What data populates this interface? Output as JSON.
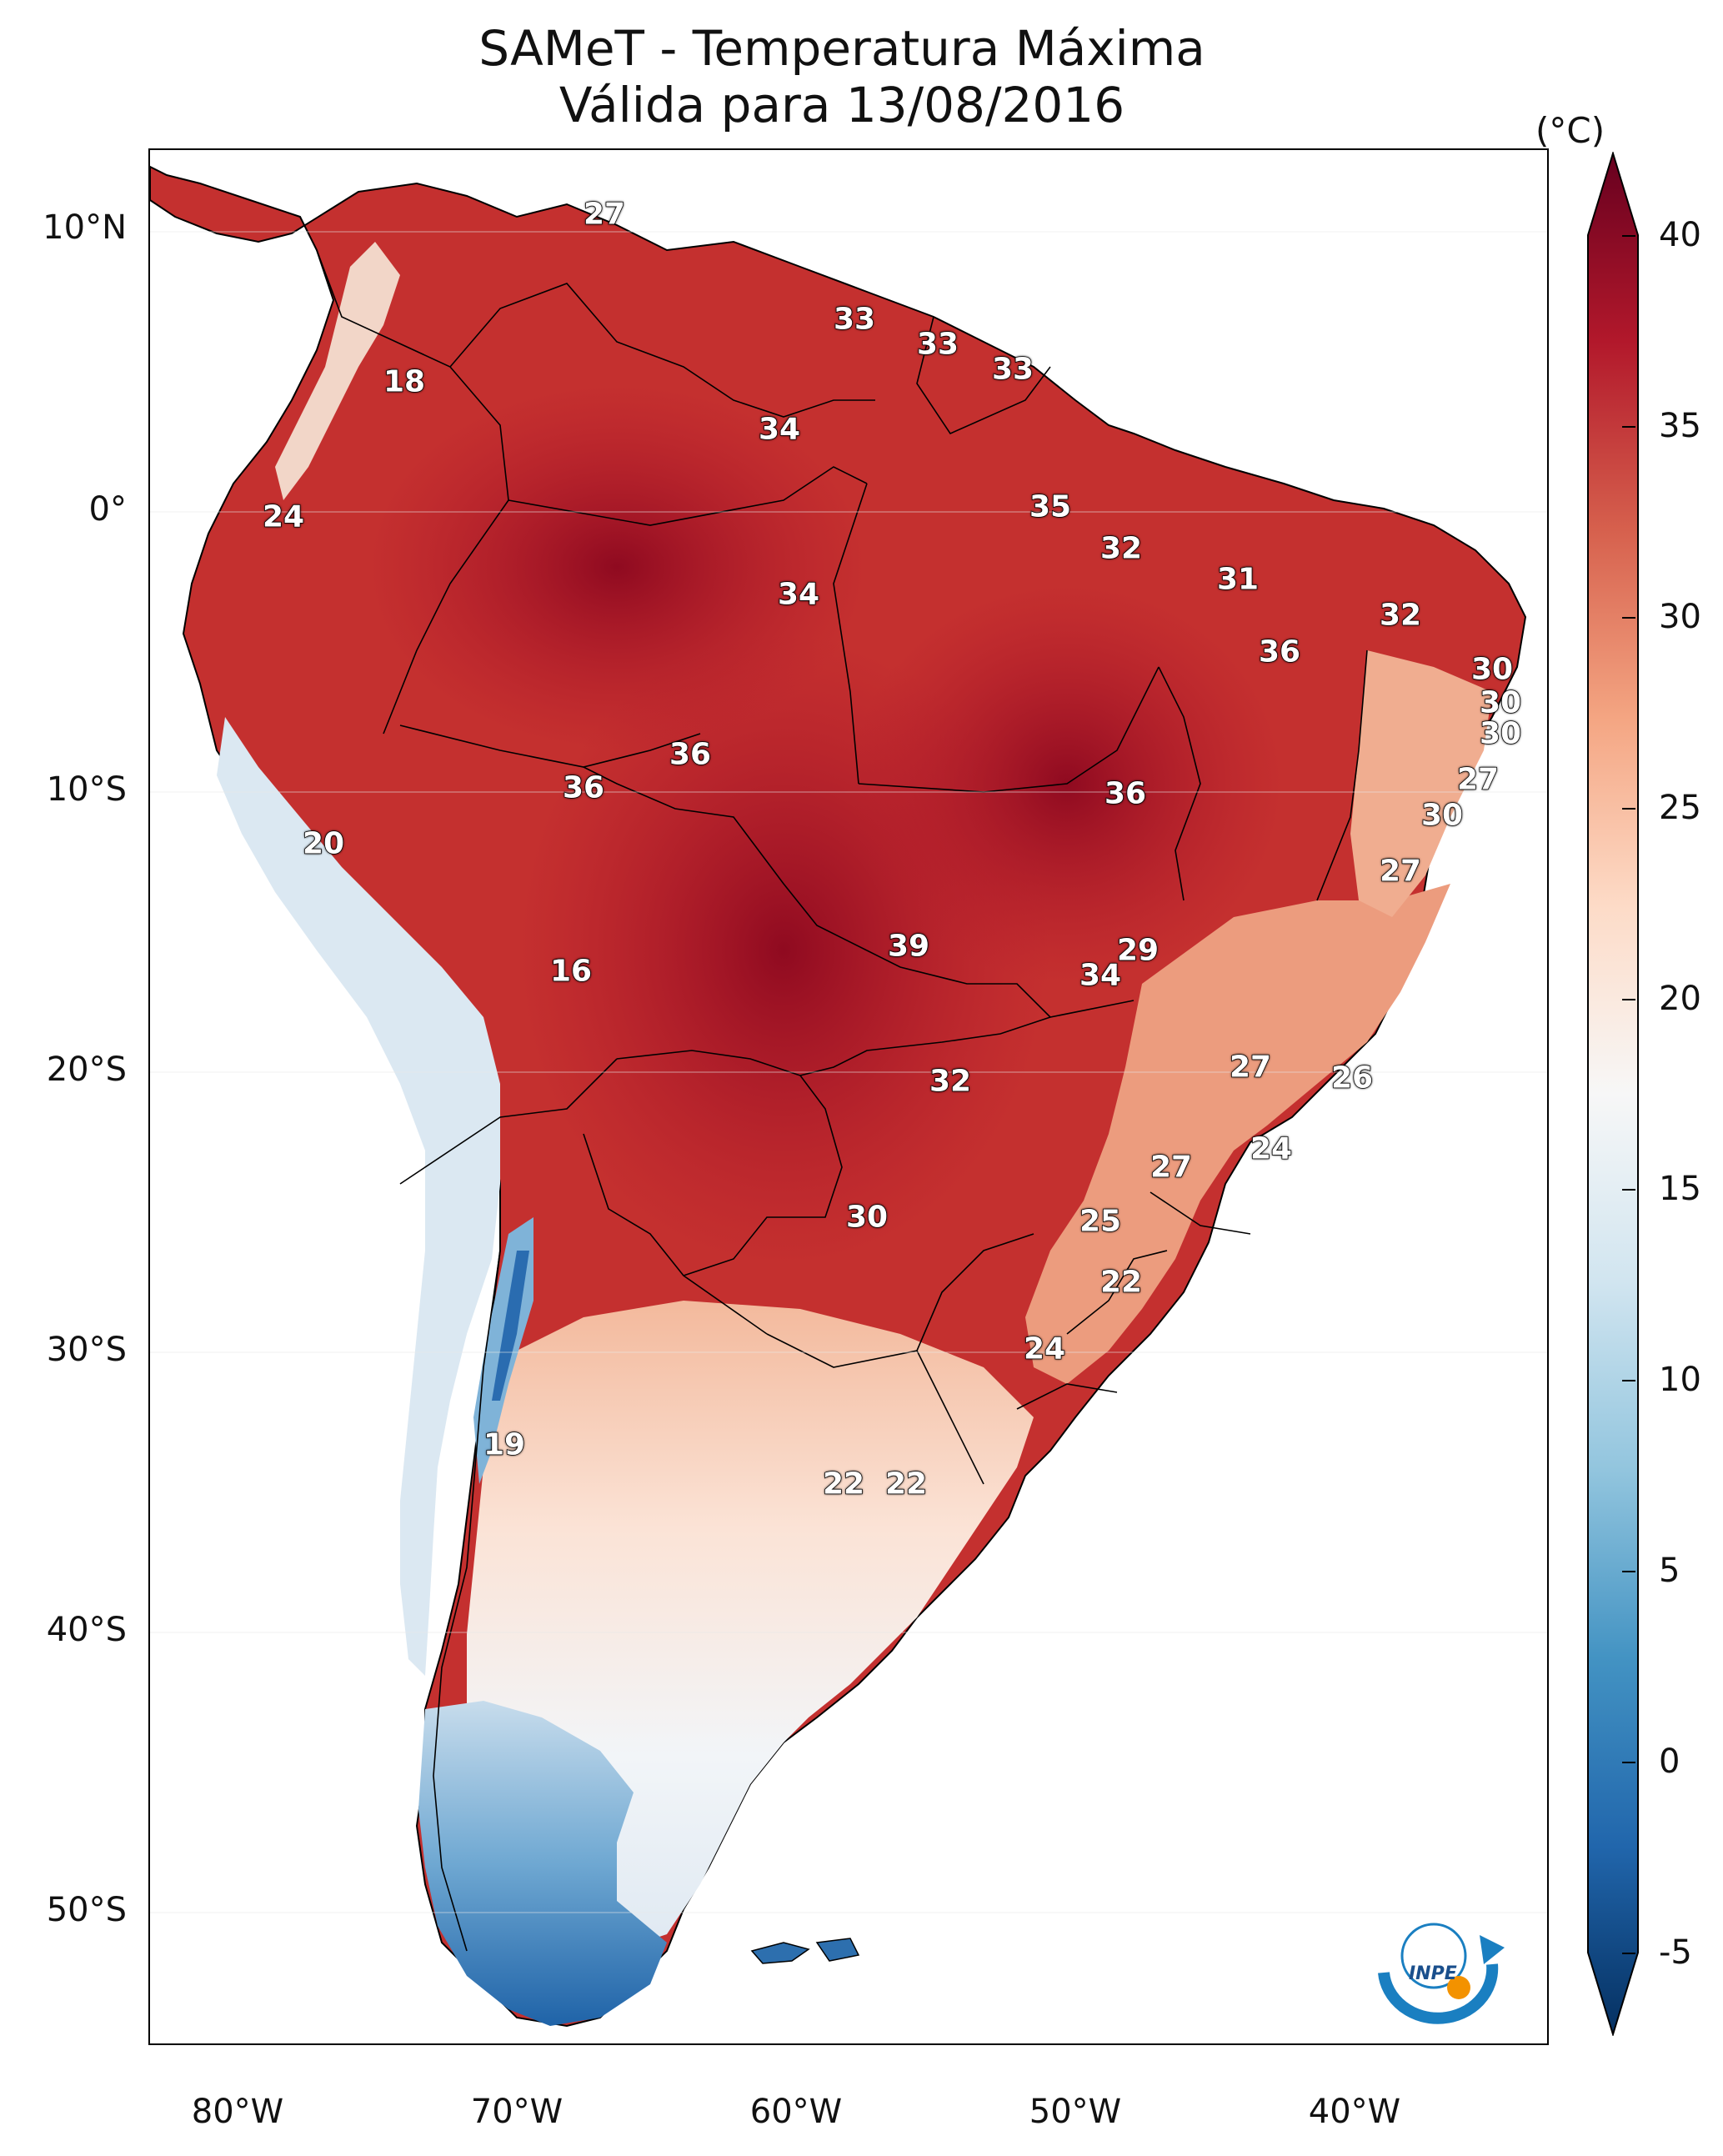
{
  "title_line1": "SAMeT - Temperatura Máxima",
  "title_line2": "Válida para 13/08/2016",
  "colorbar": {
    "unit": "(°C)",
    "ticks": [
      "40",
      "35",
      "30",
      "25",
      "20",
      "15",
      "10",
      "5",
      "0",
      "-5"
    ],
    "range": [
      -5,
      40
    ],
    "colors": [
      "#053061",
      "#2166ac",
      "#4393c3",
      "#92c5de",
      "#d1e5f0",
      "#f7f7f7",
      "#fddbc7",
      "#f4a582",
      "#d6604d",
      "#b2182b",
      "#67001f"
    ]
  },
  "lat_labels": [
    "10°N",
    "0°",
    "10°S",
    "20°S",
    "30°S",
    "40°S",
    "50°S"
  ],
  "lon_labels": [
    "80°W",
    "70°W",
    "60°W",
    "50°W",
    "40°W"
  ],
  "contour_labels": [
    "27",
    "18",
    "33",
    "33",
    "33",
    "34",
    "24",
    "35",
    "32",
    "31",
    "34",
    "32",
    "36",
    "30",
    "30",
    "30",
    "36",
    "36",
    "36",
    "27",
    "20",
    "30",
    "27",
    "16",
    "39",
    "29",
    "34",
    "27",
    "26",
    "32",
    "24",
    "27",
    "30",
    "25",
    "22",
    "24",
    "19",
    "22",
    "22"
  ],
  "logo_text": "INPE"
}
